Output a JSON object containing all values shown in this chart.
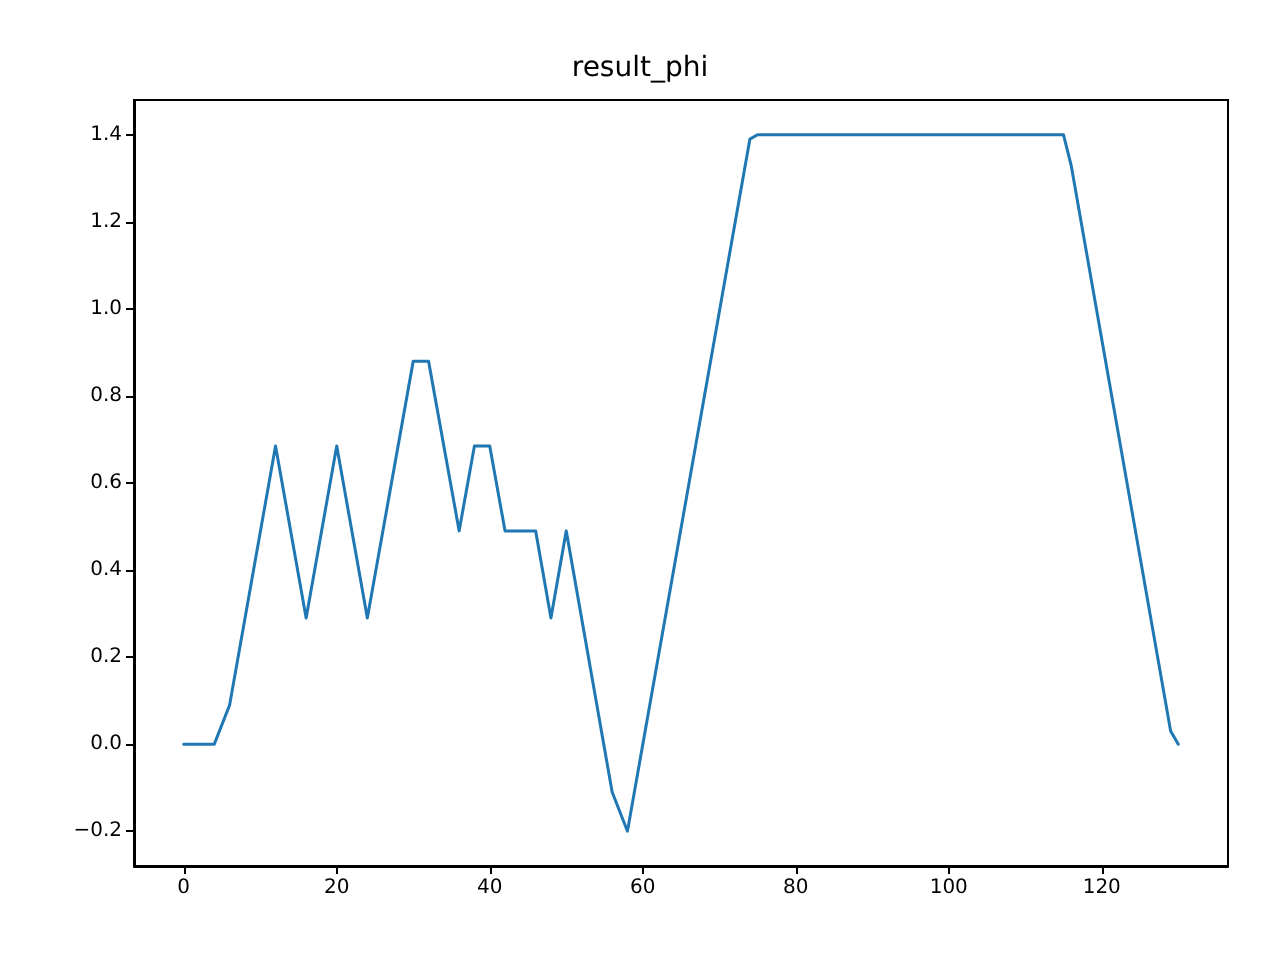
{
  "chart_data": {
    "type": "line",
    "title": "result_phi",
    "x": [
      0,
      4,
      6,
      12,
      16,
      20,
      24,
      30,
      32,
      36,
      38,
      40,
      42,
      46,
      48,
      50,
      56,
      58,
      74,
      75,
      115,
      116,
      129,
      130
    ],
    "series": [
      {
        "color": "#1f77b4",
        "values": [
          0,
          0,
          0.09,
          0.685,
          0.29,
          0.685,
          0.29,
          0.88,
          0.88,
          0.49,
          0.685,
          0.685,
          0.49,
          0.49,
          0.29,
          0.49,
          -0.11,
          -0.2,
          1.39,
          1.4,
          1.4,
          1.33,
          0.03,
          0
        ]
      }
    ],
    "xlim": [
      -6.5,
      136.5
    ],
    "ylim": [
      -0.28,
      1.48
    ],
    "xticks": [
      0,
      20,
      40,
      60,
      80,
      100,
      120
    ],
    "yticks": [
      {
        "value": -0.2,
        "label": "−0.2"
      },
      {
        "value": 0,
        "label": "0.0"
      },
      0.2,
      0.4,
      0.6,
      0.8,
      {
        "value": 1,
        "label": "1.0"
      },
      1.2,
      1.4
    ],
    "marker": "none",
    "line_style": "solid"
  }
}
